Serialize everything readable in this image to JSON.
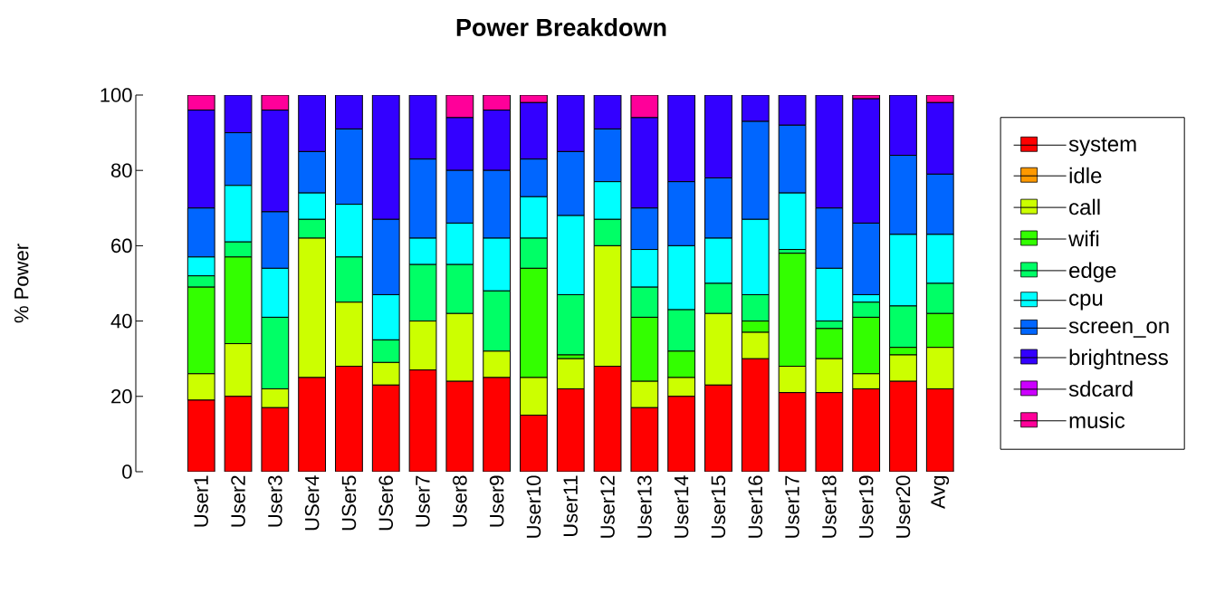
{
  "chart_data": {
    "type": "bar",
    "stacked": true,
    "title": "Power Breakdown",
    "ylabel": "% Power",
    "categories": [
      "User1",
      "User2",
      "User3",
      "USer4",
      "USer5",
      "USer6",
      "User7",
      "User8",
      "User9",
      "User10",
      "User11",
      "User12",
      "User13",
      "User14",
      "User15",
      "User16",
      "User17",
      "User18",
      "User19",
      "User20",
      "Avg"
    ],
    "ylim": [
      0,
      100
    ],
    "yticks": [
      0,
      20,
      40,
      60,
      80,
      100
    ],
    "legend": "right",
    "series": [
      {
        "name": "system",
        "color": "#ff0000",
        "values": [
          19,
          20,
          17,
          25,
          28,
          23,
          27,
          24,
          25,
          15,
          22,
          28,
          17,
          20,
          23,
          30,
          21,
          21,
          22,
          24,
          22
        ]
      },
      {
        "name": "idle",
        "color": "#ff9900",
        "values": [
          0,
          0,
          0,
          0,
          0,
          0,
          0,
          0,
          0,
          0,
          0,
          0,
          0,
          0,
          0,
          0,
          0,
          0,
          0,
          0,
          0
        ]
      },
      {
        "name": "call",
        "color": "#ccff00",
        "values": [
          7,
          14,
          5,
          37,
          17,
          6,
          13,
          18,
          7,
          10,
          8,
          32,
          7,
          5,
          19,
          7,
          7,
          9,
          4,
          7,
          11
        ]
      },
      {
        "name": "wifi",
        "color": "#33ff00",
        "values": [
          23,
          23,
          0,
          0,
          0,
          0,
          0,
          0,
          0,
          29,
          1,
          0,
          17,
          7,
          0,
          3,
          30,
          8,
          15,
          2,
          9
        ]
      },
      {
        "name": "edge",
        "color": "#00ff66",
        "values": [
          3,
          4,
          19,
          5,
          12,
          6,
          15,
          13,
          16,
          8,
          16,
          7,
          8,
          11,
          8,
          7,
          1,
          2,
          4,
          11,
          8
        ]
      },
      {
        "name": "cpu",
        "color": "#00ffff",
        "values": [
          5,
          15,
          13,
          7,
          14,
          12,
          7,
          11,
          14,
          11,
          21,
          10,
          10,
          17,
          12,
          20,
          15,
          14,
          2,
          19,
          13
        ]
      },
      {
        "name": "screen_on",
        "color": "#0066ff",
        "values": [
          13,
          14,
          15,
          11,
          20,
          20,
          21,
          14,
          18,
          10,
          17,
          14,
          11,
          17,
          16,
          26,
          18,
          16,
          19,
          21,
          16
        ]
      },
      {
        "name": "brightness",
        "color": "#3300ff",
        "values": [
          26,
          10,
          27,
          15,
          9,
          33,
          17,
          14,
          16,
          15,
          15,
          9,
          24,
          23,
          22,
          7,
          8,
          30,
          33,
          16,
          19
        ]
      },
      {
        "name": "sdcard",
        "color": "#cc00ff",
        "values": [
          0,
          0,
          0,
          0,
          0,
          0,
          0,
          0,
          0,
          0,
          0,
          0,
          0,
          0,
          0,
          0,
          0,
          0,
          0,
          0,
          0
        ]
      },
      {
        "name": "music",
        "color": "#ff0099",
        "values": [
          4,
          0,
          4,
          0,
          0,
          0,
          0,
          6,
          4,
          2,
          0,
          0,
          6,
          0,
          0,
          0,
          0,
          0,
          1,
          0,
          2
        ]
      }
    ]
  }
}
